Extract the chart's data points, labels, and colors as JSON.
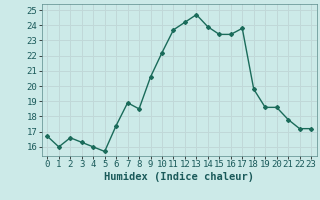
{
  "x": [
    0,
    1,
    2,
    3,
    4,
    5,
    6,
    7,
    8,
    9,
    10,
    11,
    12,
    13,
    14,
    15,
    16,
    17,
    18,
    19,
    20,
    21,
    22,
    23
  ],
  "y": [
    16.7,
    16.0,
    16.6,
    16.3,
    16.0,
    15.7,
    17.4,
    18.9,
    18.5,
    20.6,
    22.2,
    23.7,
    24.2,
    24.7,
    23.9,
    23.4,
    23.4,
    23.8,
    19.8,
    18.6,
    18.6,
    17.8,
    17.2,
    17.2
  ],
  "line_color": "#1a6b5a",
  "marker": "D",
  "marker_size": 2.0,
  "line_width": 1.0,
  "background_color": "#cceae8",
  "grid_color": "#c0d8d8",
  "xlabel": "Humidex (Indice chaleur)",
  "xlabel_fontsize": 7.5,
  "tick_fontsize": 6.5,
  "ylim": [
    15.4,
    25.4
  ],
  "yticks": [
    16,
    17,
    18,
    19,
    20,
    21,
    22,
    23,
    24,
    25
  ],
  "xlim": [
    -0.5,
    23.5
  ],
  "xticks": [
    0,
    1,
    2,
    3,
    4,
    5,
    6,
    7,
    8,
    9,
    10,
    11,
    12,
    13,
    14,
    15,
    16,
    17,
    18,
    19,
    20,
    21,
    22,
    23
  ]
}
